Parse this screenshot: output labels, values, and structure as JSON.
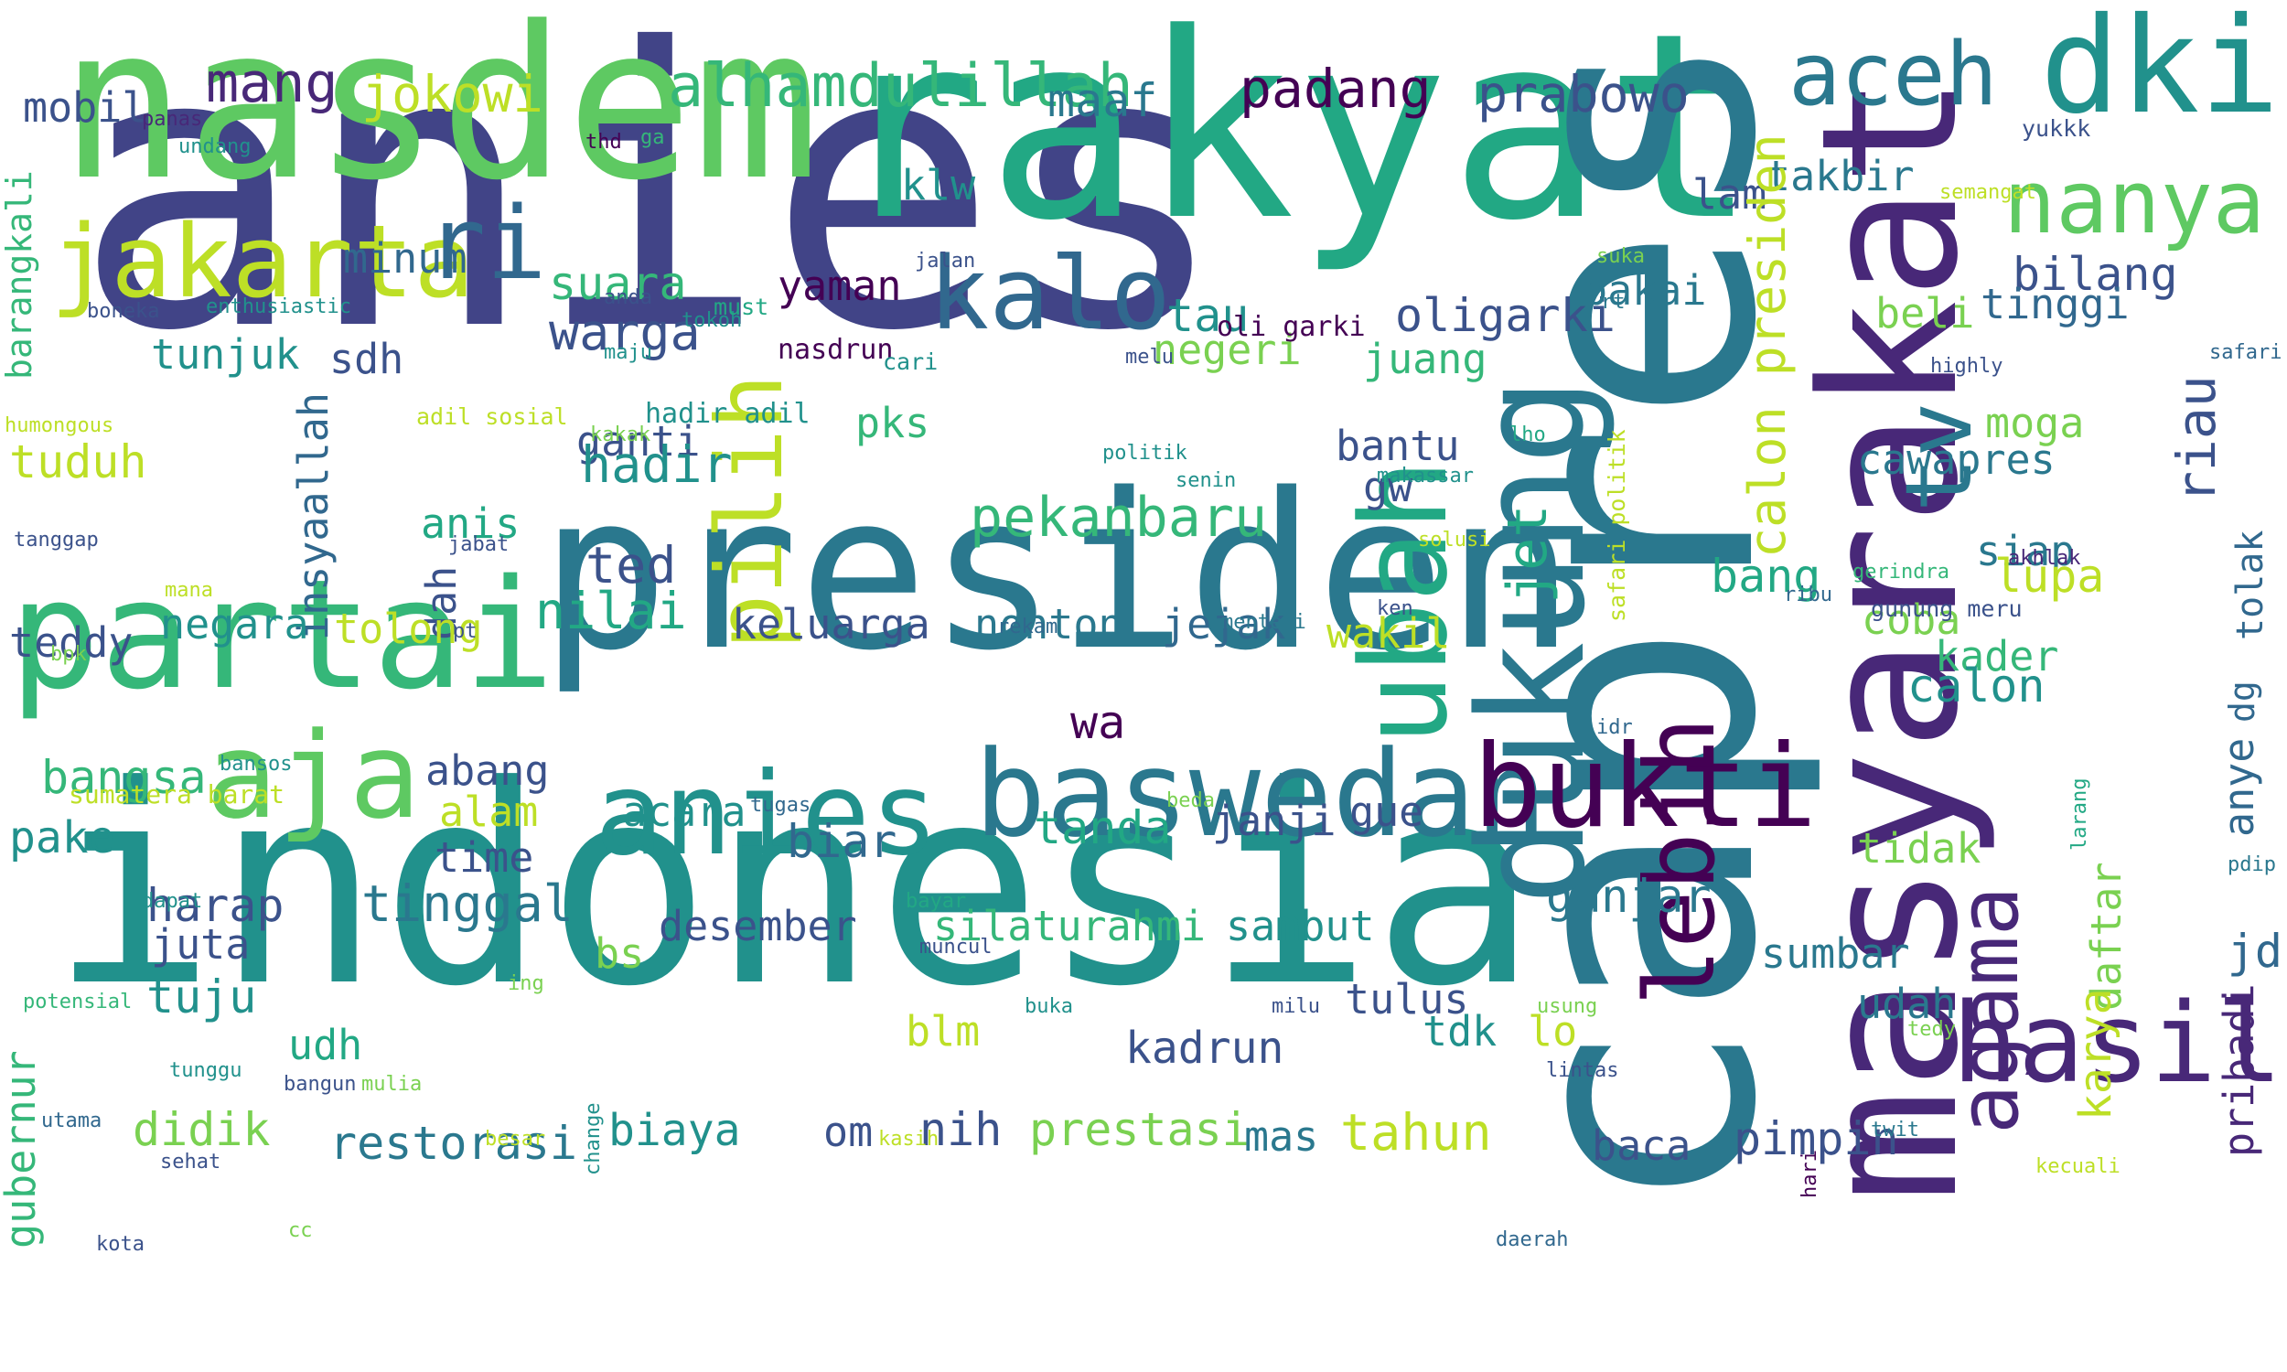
{
  "words": [
    {
      "text": "anies",
      "color": "#414487"
    },
    {
      "text": "indonesia",
      "color": "#21918c"
    },
    {
      "text": "rakyat",
      "color": "#22a884"
    },
    {
      "text": "nasdem",
      "color": "#5ec962"
    },
    {
      "text": "capres",
      "color": "#2a788e"
    },
    {
      "text": "presiden",
      "color": "#2a788e"
    },
    {
      "text": "partai",
      "color": "#35b779"
    },
    {
      "text": "masyarakat",
      "color": "#482878"
    },
    {
      "text": "dukung",
      "color": "#2a788e"
    },
    {
      "text": "jakarta",
      "color": "#bddf26"
    },
    {
      "text": "aja",
      "color": "#5ec962"
    },
    {
      "text": "baswedan",
      "color": "#2a788e"
    },
    {
      "text": "anies",
      "color": "#21918c"
    },
    {
      "text": "dki",
      "color": "#21918c"
    },
    {
      "text": "ubah",
      "color": "#22a884"
    },
    {
      "text": "aceh",
      "color": "#2a788e"
    },
    {
      "text": "nanya",
      "color": "#5ec962"
    },
    {
      "text": "hasil",
      "color": "#482878"
    },
    {
      "text": "bukti",
      "color": "#440154"
    },
    {
      "text": "kalo",
      "color": "#31688e"
    },
    {
      "text": "ri",
      "color": "#31688e"
    },
    {
      "text": "pilih",
      "color": "#bddf26"
    },
    {
      "text": "lebih",
      "color": "#440154"
    },
    {
      "text": "tv",
      "color": "#2a788e"
    },
    {
      "text": "agama",
      "color": "#482878"
    },
    {
      "text": "riau",
      "color": "#3b528b"
    },
    {
      "text": "alhamdulillah",
      "color": "#35b779"
    },
    {
      "text": "prabowo",
      "color": "#3b528b"
    },
    {
      "text": "jokowi",
      "color": "#bddf26"
    },
    {
      "text": "padang",
      "color": "#440154"
    },
    {
      "text": "maaf",
      "color": "#2a788e"
    },
    {
      "text": "mang",
      "color": "#482878"
    },
    {
      "text": "mobil",
      "color": "#3b528b"
    },
    {
      "text": "takbir",
      "color": "#2a788e"
    },
    {
      "text": "klw",
      "color": "#21918c"
    },
    {
      "text": "lam",
      "color": "#3b528b"
    },
    {
      "text": "bilang",
      "color": "#3b528b"
    },
    {
      "text": "tinggi",
      "color": "#31688e"
    },
    {
      "text": "oligarki",
      "color": "#3b528b"
    },
    {
      "text": "warga",
      "color": "#3b528b"
    },
    {
      "text": "suara",
      "color": "#35b779"
    },
    {
      "text": "yaman",
      "color": "#440154"
    },
    {
      "text": "minum",
      "color": "#31688e"
    },
    {
      "text": "sdh",
      "color": "#3b528b"
    },
    {
      "text": "tunjuk",
      "color": "#21918c"
    },
    {
      "text": "pakai",
      "color": "#2a788e"
    },
    {
      "text": "beli",
      "color": "#7ad151"
    },
    {
      "text": "tau",
      "color": "#21918c"
    },
    {
      "text": "negeri",
      "color": "#7ad151"
    },
    {
      "text": "juang",
      "color": "#35b779"
    },
    {
      "text": "jet",
      "color": "#22a884"
    },
    {
      "text": "calon presiden",
      "color": "#bddf26"
    },
    {
      "text": "tuduh",
      "color": "#bddf26"
    },
    {
      "text": "insyaallah",
      "color": "#31688e"
    },
    {
      "text": "ganti",
      "color": "#3b528b"
    },
    {
      "text": "hadir",
      "color": "#21918c"
    },
    {
      "text": "pks",
      "color": "#35b779"
    },
    {
      "text": "pekanbaru",
      "color": "#35b779"
    },
    {
      "text": "bantu",
      "color": "#3b528b"
    },
    {
      "text": "gw",
      "color": "#3b528b"
    },
    {
      "text": "cawapres",
      "color": "#2a788e"
    },
    {
      "text": "moga",
      "color": "#7ad151"
    },
    {
      "text": "siap",
      "color": "#2a788e"
    },
    {
      "text": "tolak",
      "color": "#31688e"
    },
    {
      "text": "anis",
      "color": "#22a884"
    },
    {
      "text": "ted",
      "color": "#3b528b"
    },
    {
      "text": "dah",
      "color": "#3b528b"
    },
    {
      "text": "teddy",
      "color": "#3b528b"
    },
    {
      "text": "negara",
      "color": "#21918c"
    },
    {
      "text": "tolong",
      "color": "#bddf26"
    },
    {
      "text": "nilai",
      "color": "#22a884"
    },
    {
      "text": "keluarga",
      "color": "#3b528b"
    },
    {
      "text": "nonton",
      "color": "#2a788e"
    },
    {
      "text": "jejak",
      "color": "#31688e"
    },
    {
      "text": "wakil",
      "color": "#bddf26"
    },
    {
      "text": "bang",
      "color": "#22a884"
    },
    {
      "text": "lupa",
      "color": "#bddf26"
    },
    {
      "text": "coba",
      "color": "#7ad151"
    },
    {
      "text": "kader",
      "color": "#35b779"
    },
    {
      "text": "anye",
      "color": "#31688e"
    },
    {
      "text": "dg",
      "color": "#31688e"
    },
    {
      "text": "calon",
      "color": "#21918c"
    },
    {
      "text": "wa",
      "color": "#440154"
    },
    {
      "text": "bangsa",
      "color": "#35b779"
    },
    {
      "text": "abang",
      "color": "#3b528b"
    },
    {
      "text": "pake",
      "color": "#21918c"
    },
    {
      "text": "alam",
      "color": "#bddf26"
    },
    {
      "text": "acara",
      "color": "#21918c"
    },
    {
      "text": "biar",
      "color": "#31688e"
    },
    {
      "text": "tanda",
      "color": "#22a884"
    },
    {
      "text": "janji",
      "color": "#3b528b"
    },
    {
      "text": "gue",
      "color": "#3b528b"
    },
    {
      "text": "time",
      "color": "#3b528b"
    },
    {
      "text": "ganjar",
      "color": "#2a788e"
    },
    {
      "text": "tidak",
      "color": "#7ad151"
    },
    {
      "text": "jd",
      "color": "#31688e"
    },
    {
      "text": "daftar",
      "color": "#7ad151"
    },
    {
      "text": "karya",
      "color": "#bddf26"
    },
    {
      "text": "pribadi",
      "color": "#482878"
    },
    {
      "text": "harap",
      "color": "#3b528b"
    },
    {
      "text": "tinggal",
      "color": "#2a788e"
    },
    {
      "text": "juta",
      "color": "#3b528b"
    },
    {
      "text": "desember",
      "color": "#3b528b"
    },
    {
      "text": "silaturahmi",
      "color": "#35b779"
    },
    {
      "text": "sambut",
      "color": "#21918c"
    },
    {
      "text": "bs",
      "color": "#7ad151"
    },
    {
      "text": "sumbar",
      "color": "#2a788e"
    },
    {
      "text": "tuju",
      "color": "#21918c"
    },
    {
      "text": "tulus",
      "color": "#3b528b"
    },
    {
      "text": "lo",
      "color": "#bddf26"
    },
    {
      "text": "tdk",
      "color": "#21918c"
    },
    {
      "text": "udah",
      "color": "#2a788e"
    },
    {
      "text": "blm",
      "color": "#bddf26"
    },
    {
      "text": "udh",
      "color": "#22a884"
    },
    {
      "text": "kadrun",
      "color": "#3b528b"
    },
    {
      "text": "gubernur",
      "color": "#35b779"
    },
    {
      "text": "didik",
      "color": "#7ad151"
    },
    {
      "text": "restorasi",
      "color": "#2a788e"
    },
    {
      "text": "biaya",
      "color": "#21918c"
    },
    {
      "text": "om",
      "color": "#3b528b"
    },
    {
      "text": "nih",
      "color": "#3b528b"
    },
    {
      "text": "prestasi",
      "color": "#7ad151"
    },
    {
      "text": "mas",
      "color": "#2a788e"
    },
    {
      "text": "tahun",
      "color": "#bddf26"
    },
    {
      "text": "baca",
      "color": "#3b528b"
    },
    {
      "text": "pimpin",
      "color": "#3b528b"
    },
    {
      "text": "barangkali",
      "color": "#35b779"
    },
    {
      "text": "panas",
      "color": "#482878"
    },
    {
      "text": "undang",
      "color": "#21918c"
    },
    {
      "text": "thd",
      "color": "#440154"
    },
    {
      "text": "ga",
      "color": "#35b779"
    },
    {
      "text": "yukkk",
      "color": "#3b528b"
    },
    {
      "text": "semangat",
      "color": "#bddf26"
    },
    {
      "text": "jalan",
      "color": "#3b528b"
    },
    {
      "text": "suka",
      "color": "#7ad151"
    },
    {
      "text": "rt",
      "color": "#2a788e"
    },
    {
      "text": "safari",
      "color": "#31688e"
    },
    {
      "text": "highly",
      "color": "#3b528b"
    },
    {
      "text": "boneka",
      "color": "#3b528b"
    },
    {
      "text": "enthusiastic",
      "color": "#21918c"
    },
    {
      "text": "anda",
      "color": "#3b528b"
    },
    {
      "text": "tokoh",
      "color": "#21918c"
    },
    {
      "text": "must",
      "color": "#22a884"
    },
    {
      "text": "maju",
      "color": "#21918c"
    },
    {
      "text": "nasdrun",
      "color": "#440154"
    },
    {
      "text": "cari",
      "color": "#21918c"
    },
    {
      "text": "oli garki",
      "color": "#440154"
    },
    {
      "text": "melu",
      "color": "#3b528b"
    },
    {
      "text": "humongous",
      "color": "#bddf26"
    },
    {
      "text": "adil sosial",
      "color": "#bddf26"
    },
    {
      "text": "kakak",
      "color": "#7ad151"
    },
    {
      "text": "hadir adil",
      "color": "#21918c"
    },
    {
      "text": "politik",
      "color": "#21918c"
    },
    {
      "text": "senin",
      "color": "#21918c"
    },
    {
      "text": "makassar",
      "color": "#21918c"
    },
    {
      "text": "lho",
      "color": "#22a884"
    },
    {
      "text": "safari politik",
      "color": "#bddf26"
    },
    {
      "text": "solusi",
      "color": "#bddf26"
    },
    {
      "text": "tanggap",
      "color": "#3b528b"
    },
    {
      "text": "jabat",
      "color": "#3b528b"
    },
    {
      "text": "mana",
      "color": "#bddf26"
    },
    {
      "text": "pt",
      "color": "#3b528b"
    },
    {
      "text": "ken",
      "color": "#3b528b"
    },
    {
      "text": "rekam",
      "color": "#31688e"
    },
    {
      "text": "menteri",
      "color": "#2a788e"
    },
    {
      "text": "akhlak",
      "color": "#482878"
    },
    {
      "text": "gerindra",
      "color": "#35b779"
    },
    {
      "text": "ribu",
      "color": "#31688e"
    },
    {
      "text": "gunung meru",
      "color": "#3b528b"
    },
    {
      "text": "bpk",
      "color": "#7ad151"
    },
    {
      "text": "idr",
      "color": "#31688e"
    },
    {
      "text": "bansos",
      "color": "#21918c"
    },
    {
      "text": "tugas",
      "color": "#31688e"
    },
    {
      "text": "beda",
      "color": "#7ad151"
    },
    {
      "text": "sumatera barat",
      "color": "#bddf26"
    },
    {
      "text": "dapat",
      "color": "#21918c"
    },
    {
      "text": "bayar",
      "color": "#22a884"
    },
    {
      "text": "muncul",
      "color": "#3b528b"
    },
    {
      "text": "larang",
      "color": "#22a884"
    },
    {
      "text": "pdip",
      "color": "#2a788e"
    },
    {
      "text": "potensial",
      "color": "#35b779"
    },
    {
      "text": "ing",
      "color": "#7ad151"
    },
    {
      "text": "buka",
      "color": "#21918c"
    },
    {
      "text": "milu",
      "color": "#3b528b"
    },
    {
      "text": "usung",
      "color": "#7ad151"
    },
    {
      "text": "tedy",
      "color": "#7ad151"
    },
    {
      "text": "lintas",
      "color": "#3b528b"
    },
    {
      "text": "bangun",
      "color": "#3b528b"
    },
    {
      "text": "mulia",
      "color": "#7ad151"
    },
    {
      "text": "tunggu",
      "color": "#21918c"
    },
    {
      "text": "utama",
      "color": "#31688e"
    },
    {
      "text": "change",
      "color": "#21918c"
    },
    {
      "text": "besar",
      "color": "#bddf26"
    },
    {
      "text": "kasih",
      "color": "#bddf26"
    },
    {
      "text": "twit",
      "color": "#2a788e"
    },
    {
      "text": "hari",
      "color": "#440154"
    },
    {
      "text": "kecuali",
      "color": "#bddf26"
    },
    {
      "text": "sehat",
      "color": "#3b528b"
    },
    {
      "text": "kota",
      "color": "#3b528b"
    },
    {
      "text": "cc",
      "color": "#7ad151"
    },
    {
      "text": "daerah",
      "color": "#31688e"
    }
  ]
}
